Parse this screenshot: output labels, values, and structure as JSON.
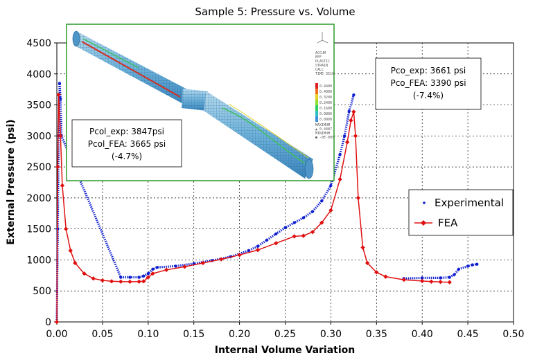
{
  "chart_data": {
    "type": "scatter",
    "title": "Sample 5: Pressure vs. Volume",
    "xlabel": "Internal Volume Variation",
    "ylabel": "External Pressure (psi)",
    "xlim": [
      0,
      0.5
    ],
    "ylim": [
      0,
      4500
    ],
    "xticks": [
      "0.00",
      "0.05",
      "0.10",
      "0.15",
      "0.20",
      "0.25",
      "0.30",
      "0.35",
      "0.40",
      "0.45",
      "0.50"
    ],
    "yticks": [
      "0",
      "500",
      "1000",
      "1500",
      "2000",
      "2500",
      "3000",
      "3500",
      "4000",
      "4500"
    ],
    "grid": true,
    "legend_position": "right",
    "series": [
      {
        "name": "Experimental",
        "marker": "dot",
        "color": "#1020d0",
        "x": [
          0.0,
          0.001,
          0.002,
          0.003,
          0.004,
          0.005,
          0.07,
          0.08,
          0.09,
          0.095,
          0.1,
          0.105,
          0.11,
          0.13,
          0.15,
          0.17,
          0.19,
          0.21,
          0.22,
          0.23,
          0.24,
          0.25,
          0.26,
          0.27,
          0.28,
          0.29,
          0.3,
          0.31,
          0.315,
          0.32,
          0.325
        ],
        "y": [
          0,
          1500,
          3000,
          3847,
          3600,
          3000,
          720,
          720,
          720,
          740,
          780,
          850,
          880,
          900,
          940,
          990,
          1050,
          1150,
          1220,
          1320,
          1420,
          1520,
          1600,
          1680,
          1780,
          1950,
          2200,
          2700,
          3000,
          3400,
          3661
        ]
      },
      {
        "name": "Experimental",
        "marker": "dot",
        "color": "#1020d0",
        "x": [
          0.38,
          0.4,
          0.42,
          0.43,
          0.435,
          0.44,
          0.45,
          0.455,
          0.46
        ],
        "y": [
          700,
          710,
          710,
          720,
          760,
          850,
          900,
          920,
          930
        ]
      },
      {
        "name": "FEA",
        "marker": "diamond",
        "color": "#e01010",
        "x": [
          0.0,
          0.001,
          0.002,
          0.004,
          0.006,
          0.01,
          0.015,
          0.02,
          0.03,
          0.04,
          0.05,
          0.06,
          0.07,
          0.08,
          0.09,
          0.095,
          0.1,
          0.105,
          0.12,
          0.14,
          0.16,
          0.18,
          0.2,
          0.22,
          0.24,
          0.26,
          0.27,
          0.28,
          0.29,
          0.3,
          0.31,
          0.318,
          0.322,
          0.325,
          0.327,
          0.33,
          0.335,
          0.34,
          0.35,
          0.36,
          0.38,
          0.4,
          0.41,
          0.42,
          0.43
        ],
        "y": [
          0,
          2500,
          3665,
          3000,
          2200,
          1500,
          1150,
          950,
          780,
          700,
          670,
          655,
          650,
          648,
          650,
          655,
          720,
          780,
          840,
          890,
          950,
          1010,
          1080,
          1160,
          1270,
          1380,
          1390,
          1450,
          1600,
          1800,
          2300,
          2900,
          3250,
          3390,
          3000,
          2000,
          1200,
          950,
          800,
          730,
          680,
          660,
          650,
          645,
          640
        ]
      }
    ],
    "annotations": [
      {
        "id": "col",
        "lines": [
          "Pcol_exp:  3847psi",
          "Pcol_FEA:  3665 psi",
          "(-4.7%)"
        ]
      },
      {
        "id": "co",
        "lines": [
          "Pco_exp:  3661 psi",
          "Pco_FEA: 3390 psi",
          "(-7.4%)"
        ]
      }
    ],
    "inset": {
      "description_labels": [
        "ACCUM",
        "EFF",
        "PLASTIC",
        "STRAIN",
        "CALC",
        "TIME 3510"
      ],
      "scale_values": [
        "0.4400",
        "0.4000",
        "0.3200",
        "0.2400",
        "0.1600",
        "0.0800",
        "0.0000"
      ],
      "scale_colors": [
        "#e02020",
        "#f07020",
        "#e8d020",
        "#90e030",
        "#30d060",
        "#30c0c0",
        "#4090e0"
      ],
      "extra_labels": [
        "MAXIMUM",
        "▲ 0.4487",
        "MINIMUM",
        "● -0E-005"
      ]
    }
  }
}
